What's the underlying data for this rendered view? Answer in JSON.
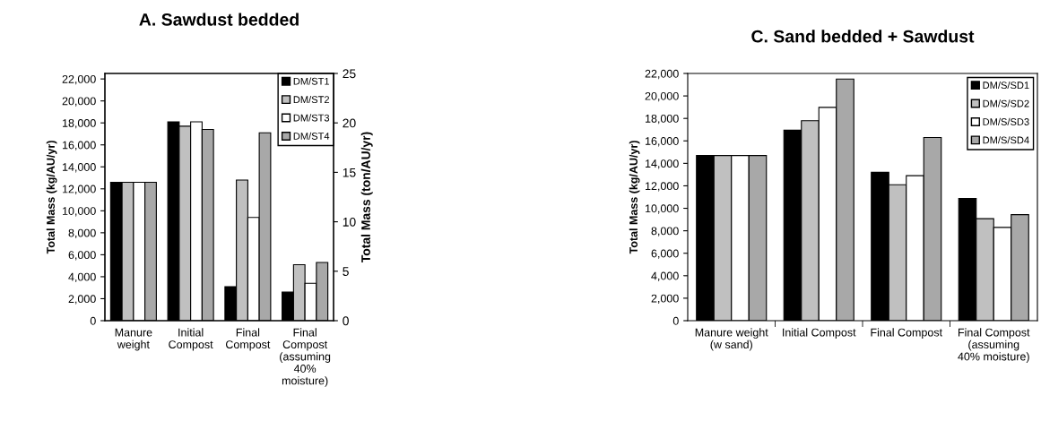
{
  "chart_data": [
    {
      "type": "bar",
      "title": "A. Sawdust bedded",
      "ylabel": "Total Mass (kg/AU/yr)",
      "y2label": "Total Mass (ton/AU/yr)",
      "categories": [
        "Manure\nweight",
        "Initial\nCompost",
        "Final\nCompost",
        "Final\nCompost\n(assuming\n40%\nmoisture)"
      ],
      "series": [
        {
          "name": "DM/ST1",
          "color": "#000000",
          "values": [
            12600,
            18100,
            3100,
            2600
          ]
        },
        {
          "name": "DM/ST2",
          "color": "#c0c0c0",
          "values": [
            12600,
            17700,
            12800,
            5100
          ]
        },
        {
          "name": "DM/ST3",
          "color": "#ffffff",
          "values": [
            12600,
            18100,
            9400,
            3400
          ]
        },
        {
          "name": "DM/ST4",
          "color": "#a8a8a8",
          "values": [
            12600,
            17400,
            17100,
            5300
          ]
        }
      ],
      "ylim": [
        0,
        22500
      ],
      "yticks": [
        {
          "value": 0,
          "label": "0"
        },
        {
          "value": 2000,
          "label": "2,000"
        },
        {
          "value": 4000,
          "label": "4,000"
        },
        {
          "value": 6000,
          "label": "6,000"
        },
        {
          "value": 8000,
          "label": "8,000"
        },
        {
          "value": 10000,
          "label": "10,000"
        },
        {
          "value": 12000,
          "label": "12,000"
        },
        {
          "value": 14000,
          "label": "14,000"
        },
        {
          "value": 16000,
          "label": "16,000"
        },
        {
          "value": 18000,
          "label": "18,000"
        },
        {
          "value": 20000,
          "label": "20,000"
        },
        {
          "value": 22000,
          "label": "22,000"
        }
      ],
      "y2lim": [
        0,
        25
      ],
      "y2ticks": [
        0,
        5,
        10,
        15,
        20,
        25
      ],
      "legend": "top right",
      "grid": false
    },
    {
      "type": "bar",
      "title": "C. Sand bedded + Sawdust",
      "ylabel": "Total Mass (kg/AU/yr)",
      "categories": [
        "Manure weight\n(w sand)",
        "Initial Compost",
        "Final Compost",
        "Final Compost\n(assuming\n40% moisture)"
      ],
      "series": [
        {
          "name": "DM/S/SD1",
          "color": "#000000",
          "values": [
            14700,
            16950,
            13200,
            10870
          ]
        },
        {
          "name": "DM/S/SD2",
          "color": "#c0c0c0",
          "values": [
            14700,
            17800,
            12100,
            9080
          ]
        },
        {
          "name": "DM/S/SD3",
          "color": "#ffffff",
          "values": [
            14700,
            18980,
            12900,
            8300
          ]
        },
        {
          "name": "DM/S/SD4",
          "color": "#a8a8a8",
          "values": [
            14700,
            21500,
            16300,
            9440
          ]
        }
      ],
      "ylim": [
        0,
        22000
      ],
      "yticks": [
        {
          "value": 0,
          "label": "0"
        },
        {
          "value": 2000,
          "label": "2,000"
        },
        {
          "value": 4000,
          "label": "4,000"
        },
        {
          "value": 6000,
          "label": "6,000"
        },
        {
          "value": 8000,
          "label": "8,000"
        },
        {
          "value": 10000,
          "label": "10,000"
        },
        {
          "value": 12000,
          "label": "12,000"
        },
        {
          "value": 14000,
          "label": "14,000"
        },
        {
          "value": 16000,
          "label": "16,000"
        },
        {
          "value": 18000,
          "label": "18,000"
        },
        {
          "value": 20000,
          "label": "20,000"
        },
        {
          "value": 22000,
          "label": "22,000"
        }
      ],
      "legend": "top right",
      "grid": false
    }
  ]
}
